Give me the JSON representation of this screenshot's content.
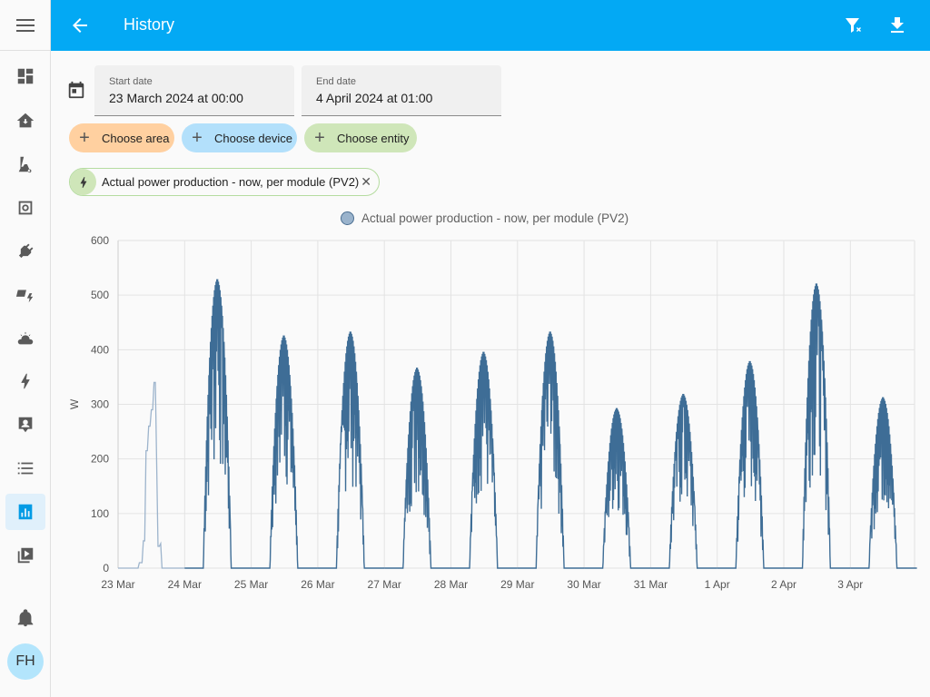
{
  "header": {
    "title": "History"
  },
  "sidebar": {
    "avatar_initials": "FH",
    "items": [
      {
        "icon": "dashboard-icon"
      },
      {
        "icon": "home-icon"
      },
      {
        "icon": "vacuum-icon"
      },
      {
        "icon": "panel-icon"
      },
      {
        "icon": "plug-icon"
      },
      {
        "icon": "solar-icon"
      },
      {
        "icon": "weather-icon"
      },
      {
        "icon": "energy-icon"
      },
      {
        "icon": "account-box-icon"
      },
      {
        "icon": "logbook-icon"
      },
      {
        "icon": "history-icon",
        "active": true
      },
      {
        "icon": "media-icon"
      },
      {
        "icon": "bell-icon"
      }
    ]
  },
  "dates": {
    "start_label": "Start date",
    "start_value": "23 March 2024 at 00:00",
    "end_label": "End date",
    "end_value": "4 April 2024 at 01:00"
  },
  "targets": {
    "area_label": "Choose area",
    "device_label": "Choose device",
    "entity_label": "Choose entity",
    "area_color": "#ffd0a0",
    "device_color": "#b3e0fb",
    "entity_color": "#cfe6b9"
  },
  "selected_entity": {
    "name": "Actual power production - now, per module (PV2)"
  },
  "colors": {
    "accent": "#03a9f4",
    "series": "#3e6d96"
  },
  "chart_data": {
    "type": "line",
    "title": "",
    "xlabel": "",
    "ylabel": "W",
    "ylim": [
      0,
      600
    ],
    "yticks": [
      0,
      100,
      200,
      300,
      400,
      500,
      600
    ],
    "xticks": [
      "23 Mar",
      "24 Mar",
      "25 Mar",
      "26 Mar",
      "27 Mar",
      "28 Mar",
      "29 Mar",
      "30 Mar",
      "31 Mar",
      "1 Apr",
      "2 Apr",
      "3 Apr"
    ],
    "grid": true,
    "legend": "top-center",
    "series": [
      {
        "name": "Actual power production - now, per module (PV2)",
        "daily_peaks": [
          {
            "day": "23 Mar",
            "peak": 340
          },
          {
            "day": "24 Mar",
            "peak": 528
          },
          {
            "day": "25 Mar",
            "peak": 425
          },
          {
            "day": "26 Mar",
            "peak": 432
          },
          {
            "day": "27 Mar",
            "peak": 366
          },
          {
            "day": "28 Mar",
            "peak": 395
          },
          {
            "day": "29 Mar",
            "peak": 432
          },
          {
            "day": "30 Mar",
            "peak": 292
          },
          {
            "day": "31 Mar",
            "peak": 318
          },
          {
            "day": "1 Apr",
            "peak": 378
          },
          {
            "day": "2 Apr",
            "peak": 520
          },
          {
            "day": "3 Apr",
            "peak": 312
          }
        ]
      }
    ]
  }
}
